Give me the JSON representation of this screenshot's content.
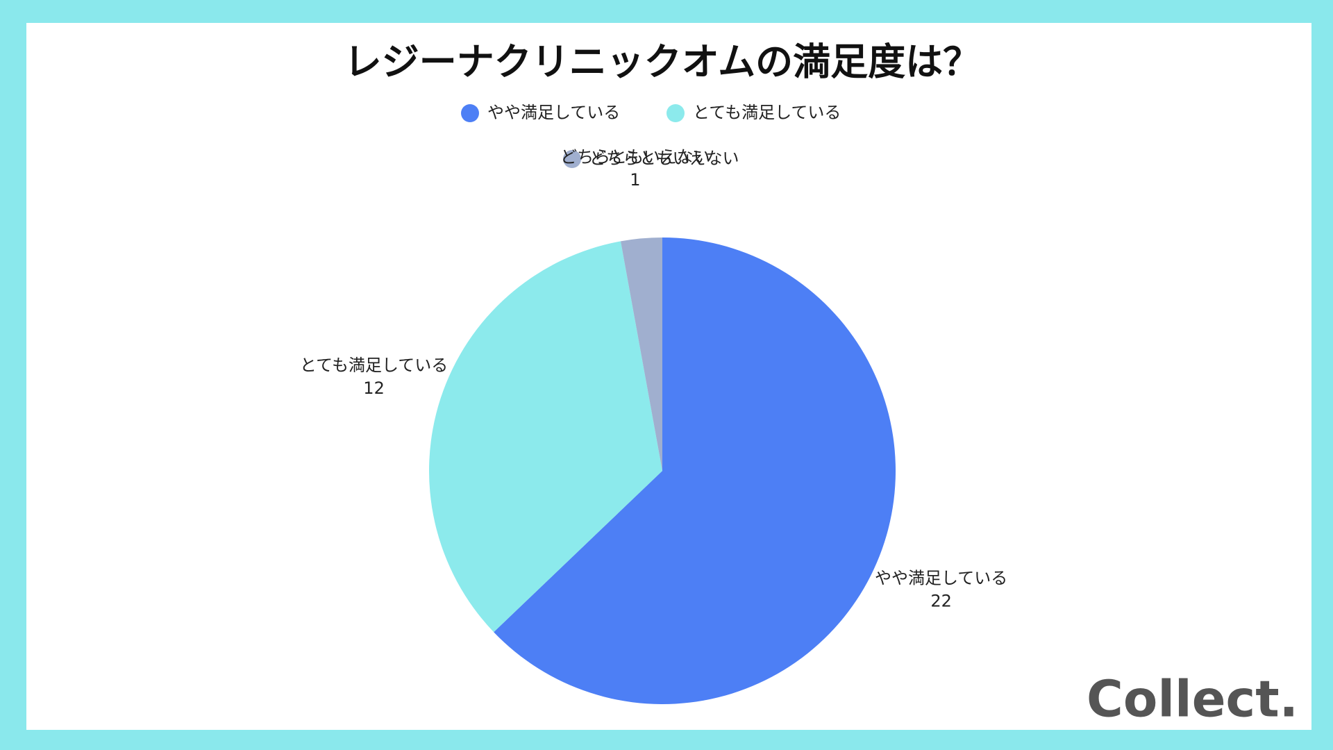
{
  "chart_data": {
    "type": "pie",
    "title": "レジーナクリニックオムの満足度は？",
    "categories": [
      "やや満足している",
      "とても満足している",
      "どちらともいえない"
    ],
    "values": [
      22,
      12,
      1
    ],
    "colors": [
      "#4d7ff5",
      "#8ceaec",
      "#a0afcf"
    ],
    "legend": "top",
    "logo": "Collect."
  }
}
